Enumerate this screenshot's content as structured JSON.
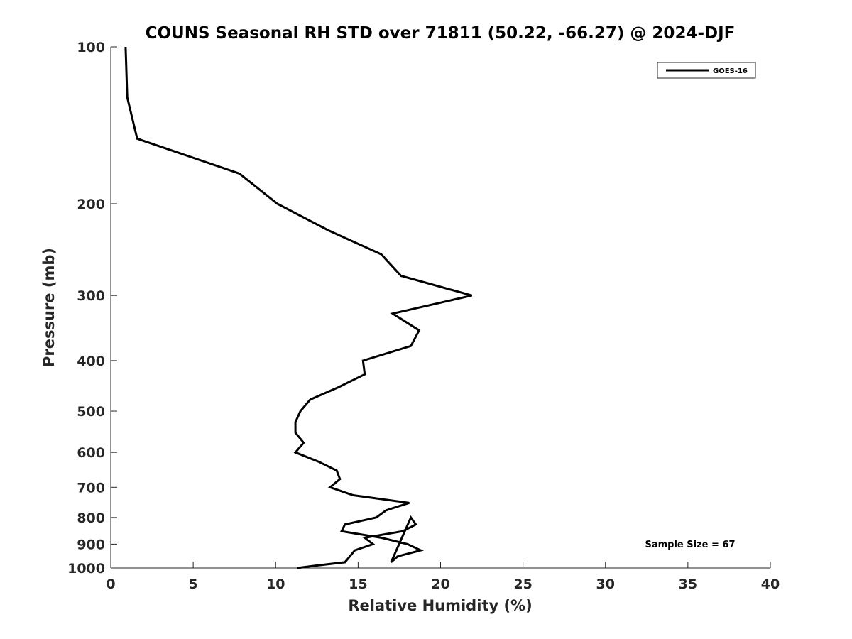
{
  "chart_data": {
    "type": "line",
    "title": "COUNS Seasonal RH STD over 71811 (50.22, -66.27) @ 2024-DJF",
    "xlabel": "Relative Humidity (%)",
    "ylabel": "Pressure (mb)",
    "xlim": [
      0,
      40
    ],
    "ylim": [
      1000,
      100
    ],
    "y_scale": "log",
    "y_reversed": true,
    "xticks": [
      0,
      5,
      10,
      15,
      20,
      25,
      30,
      35,
      40
    ],
    "yticks": [
      1000,
      900,
      800,
      700,
      600,
      500,
      400,
      300,
      200,
      100
    ],
    "grid": false,
    "legend": "top-right",
    "series": [
      {
        "name": "GOES-16",
        "color": "#000000",
        "points": [
          [
            0.9,
            100
          ],
          [
            1.0,
            125
          ],
          [
            1.6,
            150
          ],
          [
            7.8,
            175
          ],
          [
            10.1,
            200
          ],
          [
            13.2,
            225
          ],
          [
            16.4,
            250
          ],
          [
            17.6,
            275
          ],
          [
            21.9,
            300
          ],
          [
            17.1,
            325
          ],
          [
            18.7,
            350
          ],
          [
            18.2,
            375
          ],
          [
            15.3,
            400
          ],
          [
            15.4,
            425
          ],
          [
            13.8,
            450
          ],
          [
            12.1,
            475
          ],
          [
            11.5,
            500
          ],
          [
            11.2,
            525
          ],
          [
            11.2,
            550
          ],
          [
            11.7,
            575
          ],
          [
            11.2,
            600
          ],
          [
            12.6,
            625
          ],
          [
            13.7,
            650
          ],
          [
            13.9,
            675
          ],
          [
            13.3,
            700
          ],
          [
            14.7,
            725
          ],
          [
            18.1,
            750
          ],
          [
            16.7,
            775
          ],
          [
            16.1,
            800
          ],
          [
            14.2,
            825
          ],
          [
            14.0,
            850
          ],
          [
            16.4,
            875
          ],
          [
            18.0,
            900
          ],
          [
            18.8,
            925
          ],
          [
            17.4,
            950
          ],
          [
            17.0,
            975
          ],
          [
            18.2,
            800
          ],
          [
            18.5,
            825
          ],
          [
            17.7,
            850
          ],
          [
            15.4,
            875
          ],
          [
            15.9,
            900
          ],
          [
            14.8,
            925
          ],
          [
            14.5,
            950
          ],
          [
            14.2,
            975
          ],
          [
            12.4,
            990
          ],
          [
            11.3,
            1000
          ]
        ]
      }
    ],
    "annotations": [
      "Sample Size = 67"
    ]
  }
}
